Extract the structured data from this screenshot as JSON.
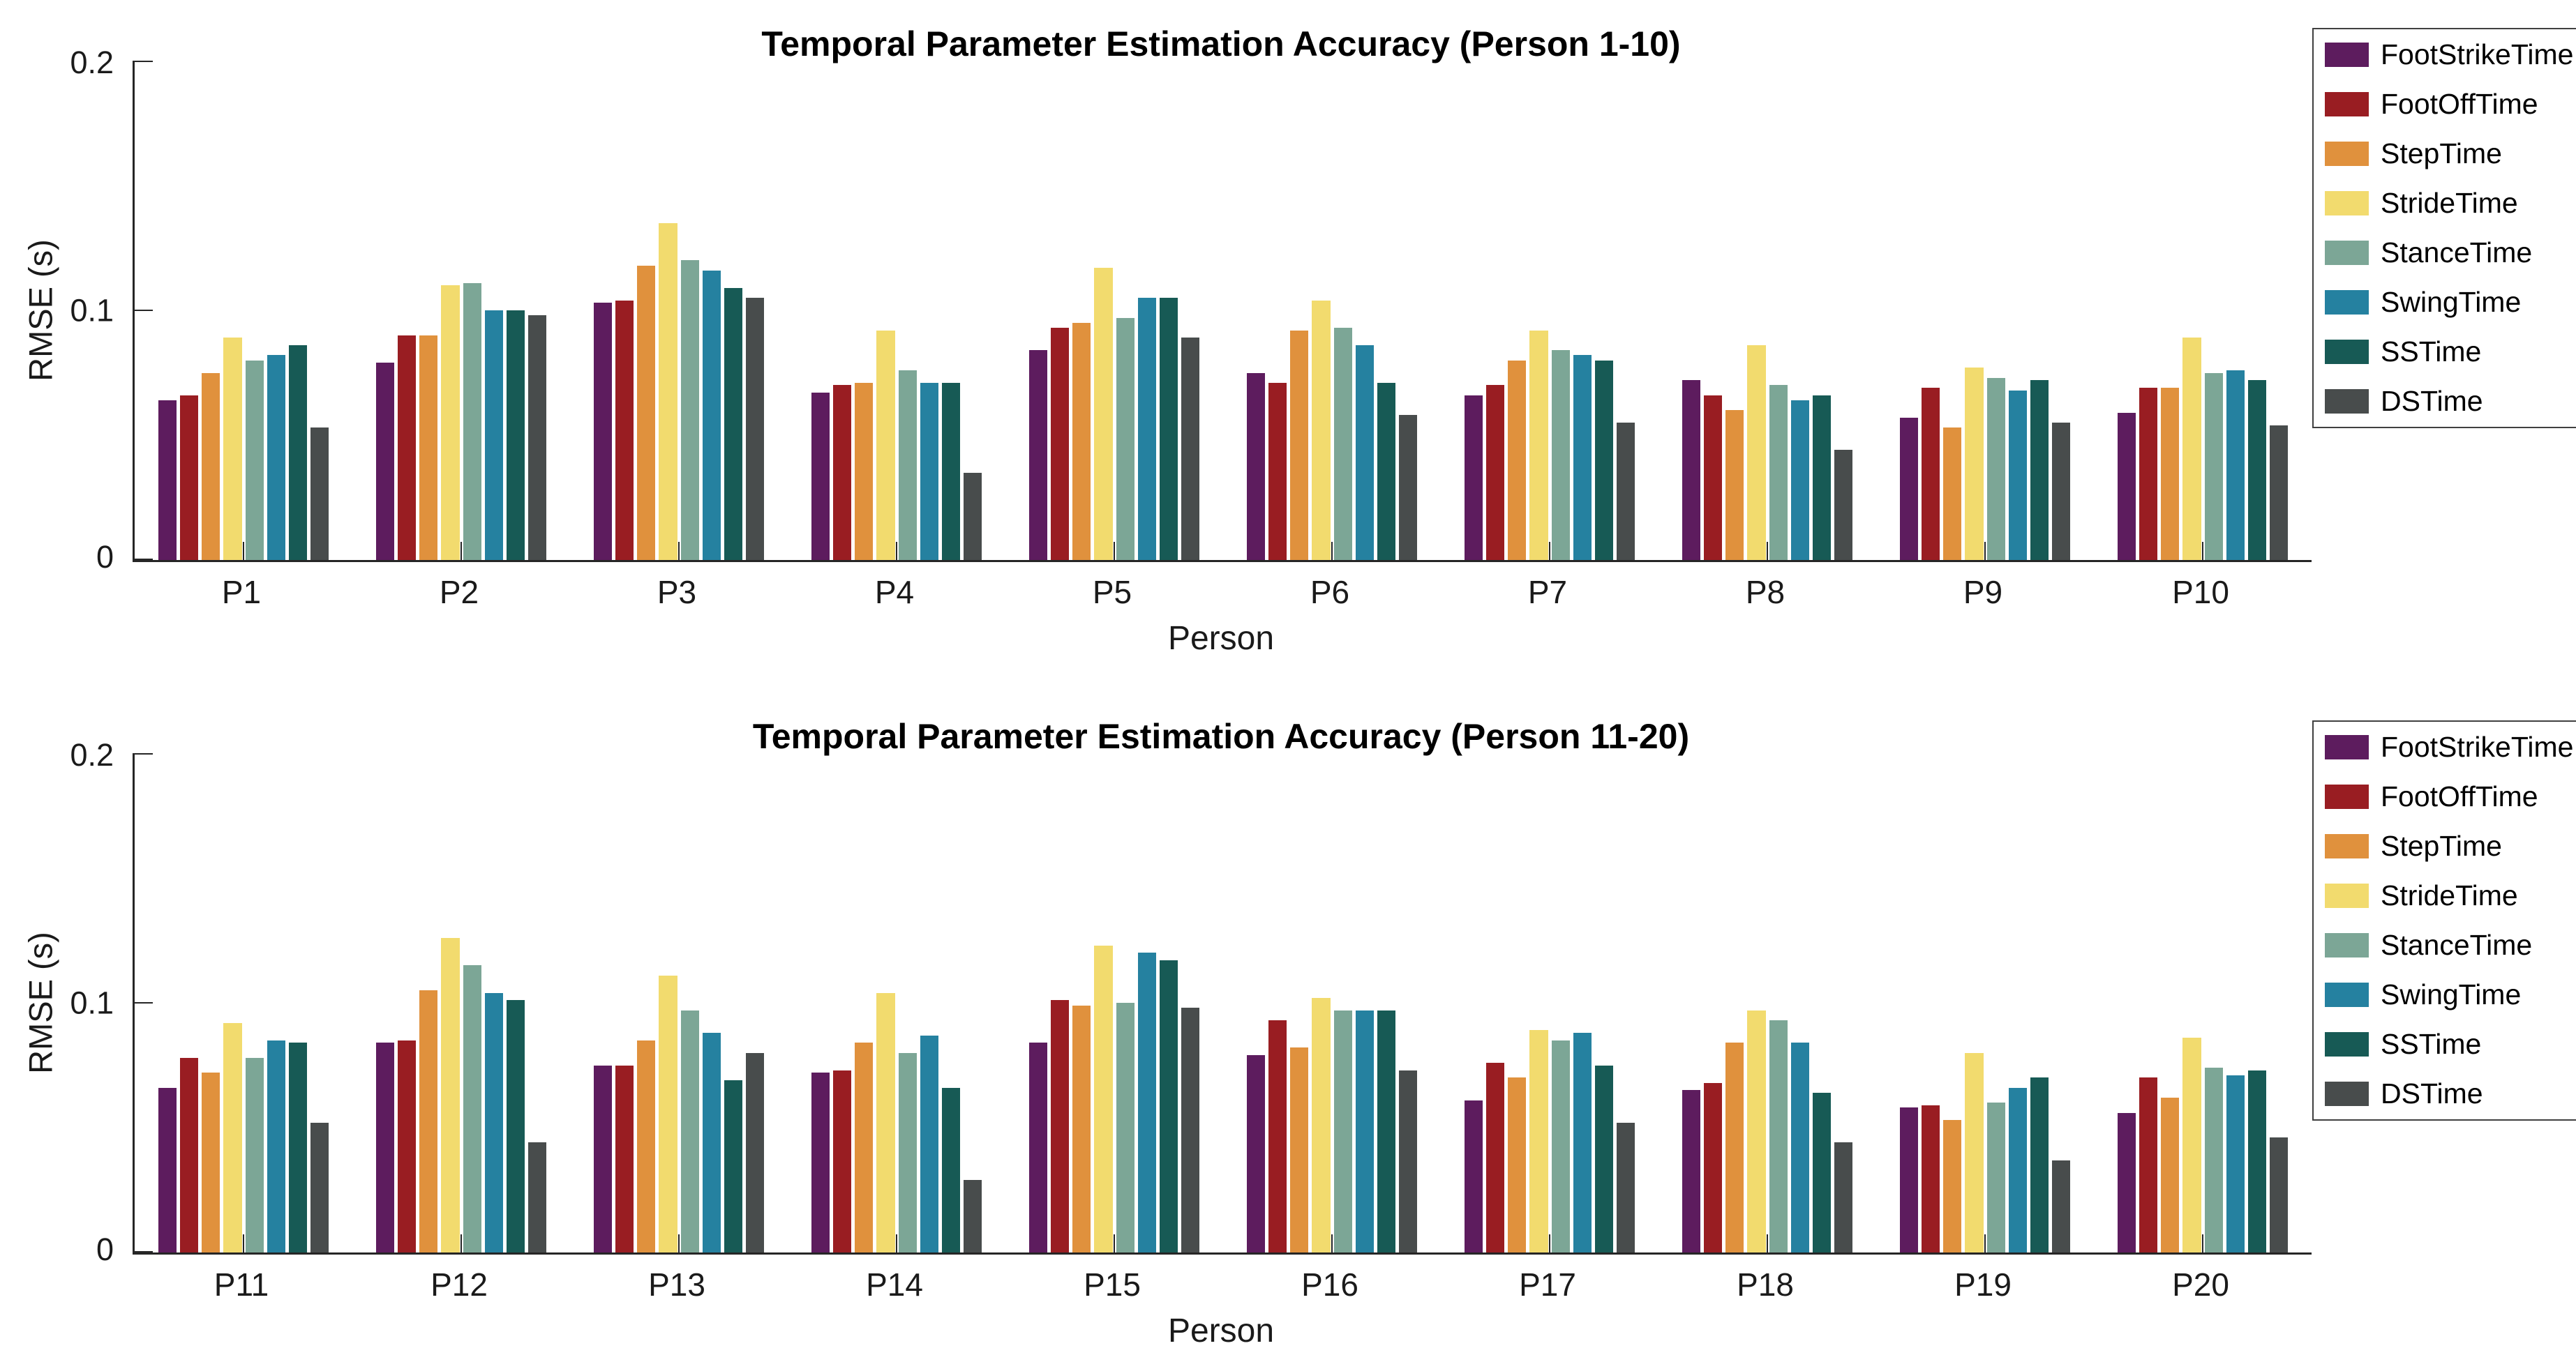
{
  "figure": {
    "background": "#ffffff",
    "axis_color": "#262626",
    "text_color": "#000000"
  },
  "chart_data": [
    {
      "type": "bar",
      "title": "Temporal Parameter Estimation Accuracy (Person 1-10)",
      "xlabel": "Person",
      "ylabel": "RMSE (s)",
      "ylim": [
        0,
        0.2
      ],
      "yticks": [
        "0",
        "0.1",
        "0.2"
      ],
      "grid": false,
      "legend_position": "upper-right-outside",
      "categories": [
        "P1",
        "P2",
        "P3",
        "P4",
        "P5",
        "P6",
        "P7",
        "P8",
        "P9",
        "P10"
      ],
      "series": [
        {
          "name": "FootStrikeTime",
          "color": "#5D1C5E",
          "values": [
            0.064,
            0.079,
            0.103,
            0.067,
            0.084,
            0.075,
            0.066,
            0.072,
            0.057,
            0.059
          ]
        },
        {
          "name": "FootOffTime",
          "color": "#991D22",
          "values": [
            0.066,
            0.09,
            0.104,
            0.07,
            0.093,
            0.071,
            0.07,
            0.066,
            0.069,
            0.069
          ]
        },
        {
          "name": "StepTime",
          "color": "#E0913D",
          "values": [
            0.075,
            0.09,
            0.118,
            0.071,
            0.095,
            0.092,
            0.08,
            0.06,
            0.053,
            0.069
          ]
        },
        {
          "name": "StrideTime",
          "color": "#F2DB6E",
          "values": [
            0.089,
            0.11,
            0.135,
            0.092,
            0.117,
            0.104,
            0.092,
            0.086,
            0.077,
            0.089
          ]
        },
        {
          "name": "StanceTime",
          "color": "#7CA696",
          "values": [
            0.08,
            0.111,
            0.12,
            0.076,
            0.097,
            0.093,
            0.084,
            0.07,
            0.073,
            0.075
          ]
        },
        {
          "name": "SwingTime",
          "color": "#2581A0",
          "values": [
            0.082,
            0.1,
            0.116,
            0.071,
            0.105,
            0.086,
            0.082,
            0.064,
            0.068,
            0.076
          ]
        },
        {
          "name": "SSTime",
          "color": "#175A55",
          "values": [
            0.086,
            0.1,
            0.109,
            0.071,
            0.105,
            0.071,
            0.08,
            0.066,
            0.072,
            0.072
          ]
        },
        {
          "name": "DSTime",
          "color": "#484C4C",
          "values": [
            0.053,
            0.098,
            0.105,
            0.035,
            0.089,
            0.058,
            0.055,
            0.044,
            0.055,
            0.054
          ]
        }
      ]
    },
    {
      "type": "bar",
      "title": "Temporal Parameter Estimation Accuracy (Person 11-20)",
      "xlabel": "Person",
      "ylabel": "RMSE (s)",
      "ylim": [
        0,
        0.2
      ],
      "yticks": [
        "0",
        "0.1",
        "0.2"
      ],
      "grid": false,
      "legend_position": "upper-right-outside",
      "categories": [
        "P11",
        "P12",
        "P13",
        "P14",
        "P15",
        "P16",
        "P17",
        "P18",
        "P19",
        "P20"
      ],
      "series": [
        {
          "name": "FootStrikeTime",
          "color": "#5D1C5E",
          "values": [
            0.066,
            0.084,
            0.075,
            0.072,
            0.084,
            0.079,
            0.061,
            0.065,
            0.058,
            0.056
          ]
        },
        {
          "name": "FootOffTime",
          "color": "#991D22",
          "values": [
            0.078,
            0.085,
            0.075,
            0.073,
            0.101,
            0.093,
            0.076,
            0.068,
            0.059,
            0.07
          ]
        },
        {
          "name": "StepTime",
          "color": "#E0913D",
          "values": [
            0.072,
            0.105,
            0.085,
            0.084,
            0.099,
            0.082,
            0.07,
            0.084,
            0.053,
            0.062
          ]
        },
        {
          "name": "StrideTime",
          "color": "#F2DB6E",
          "values": [
            0.092,
            0.126,
            0.111,
            0.104,
            0.123,
            0.102,
            0.089,
            0.097,
            0.08,
            0.086
          ]
        },
        {
          "name": "StanceTime",
          "color": "#7CA696",
          "values": [
            0.078,
            0.115,
            0.097,
            0.08,
            0.1,
            0.097,
            0.085,
            0.093,
            0.06,
            0.074
          ]
        },
        {
          "name": "SwingTime",
          "color": "#2581A0",
          "values": [
            0.085,
            0.104,
            0.088,
            0.087,
            0.12,
            0.097,
            0.088,
            0.084,
            0.066,
            0.071
          ]
        },
        {
          "name": "SSTime",
          "color": "#175A55",
          "values": [
            0.084,
            0.101,
            0.069,
            0.066,
            0.117,
            0.097,
            0.075,
            0.064,
            0.07,
            0.073
          ]
        },
        {
          "name": "DSTime",
          "color": "#484C4C",
          "values": [
            0.052,
            0.044,
            0.08,
            0.029,
            0.098,
            0.073,
            0.052,
            0.044,
            0.037,
            0.046
          ]
        }
      ]
    }
  ]
}
